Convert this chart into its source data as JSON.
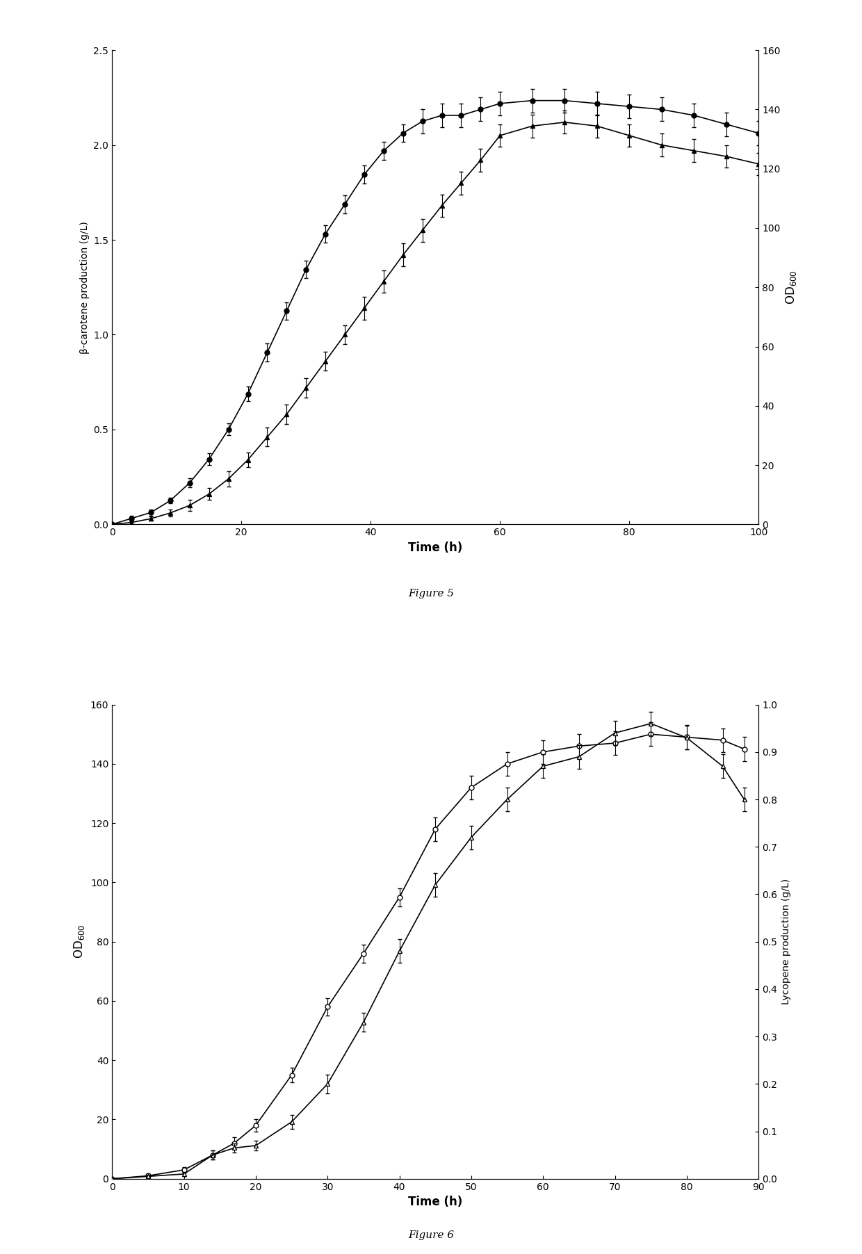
{
  "fig5": {
    "time_od": [
      0,
      3,
      6,
      9,
      12,
      15,
      18,
      21,
      24,
      27,
      30,
      33,
      36,
      39,
      42,
      45,
      48,
      51,
      54,
      57,
      60,
      65,
      70,
      75,
      80,
      85,
      90,
      95,
      100
    ],
    "od600": [
      0,
      2,
      4,
      8,
      14,
      22,
      32,
      44,
      58,
      72,
      86,
      98,
      108,
      118,
      126,
      132,
      136,
      138,
      138,
      140,
      142,
      143,
      143,
      142,
      141,
      140,
      138,
      135,
      132
    ],
    "od_err": [
      0,
      1,
      1,
      1,
      1.5,
      2,
      2,
      2.5,
      3,
      3,
      3,
      3,
      3,
      3,
      3,
      3,
      4,
      4,
      4,
      4,
      4,
      4,
      4,
      4,
      4,
      4,
      4,
      4,
      4
    ],
    "time_bc": [
      0,
      3,
      6,
      9,
      12,
      15,
      18,
      21,
      24,
      27,
      30,
      33,
      36,
      39,
      42,
      45,
      48,
      51,
      54,
      57,
      60,
      65,
      70,
      75,
      80,
      85,
      90,
      95,
      100
    ],
    "beta_carotene": [
      0,
      0.01,
      0.03,
      0.06,
      0.1,
      0.16,
      0.24,
      0.34,
      0.46,
      0.58,
      0.72,
      0.86,
      1.0,
      1.14,
      1.28,
      1.42,
      1.55,
      1.68,
      1.8,
      1.92,
      2.05,
      2.1,
      2.12,
      2.1,
      2.05,
      2.0,
      1.97,
      1.94,
      1.9
    ],
    "beta_err": [
      0,
      0.01,
      0.01,
      0.02,
      0.03,
      0.03,
      0.04,
      0.04,
      0.05,
      0.05,
      0.05,
      0.05,
      0.05,
      0.06,
      0.06,
      0.06,
      0.06,
      0.06,
      0.06,
      0.06,
      0.06,
      0.06,
      0.06,
      0.06,
      0.06,
      0.06,
      0.06,
      0.06,
      0.06
    ],
    "ylabel_left": "β-carotene production (g/L)",
    "ylabel_right": "OD$_{600}$",
    "xlabel": "Time (h)",
    "xlim": [
      0,
      100
    ],
    "ylim_left": [
      0,
      2.5
    ],
    "ylim_right": [
      0,
      160
    ],
    "xticks": [
      0,
      20,
      40,
      60,
      80,
      100
    ],
    "yticks_left": [
      0,
      0.5,
      1.0,
      1.5,
      2.0,
      2.5
    ],
    "yticks_right": [
      0,
      20,
      40,
      60,
      80,
      100,
      120,
      140,
      160
    ],
    "figure_label": "Figure 5"
  },
  "fig6": {
    "time": [
      0,
      5,
      10,
      14,
      17,
      20,
      25,
      30,
      35,
      40,
      45,
      50,
      55,
      60,
      65,
      70,
      75,
      80,
      85,
      88
    ],
    "od600": [
      0,
      1,
      3,
      8,
      12,
      18,
      35,
      58,
      76,
      95,
      118,
      132,
      140,
      144,
      146,
      147,
      150,
      149,
      148,
      145
    ],
    "od_err": [
      0,
      0.5,
      1,
      1.5,
      2,
      2,
      2.5,
      3,
      3,
      3,
      4,
      4,
      4,
      4,
      4,
      4,
      4,
      4,
      4,
      4
    ],
    "lycopene": [
      0,
      0.005,
      0.01,
      0.05,
      0.065,
      0.07,
      0.12,
      0.2,
      0.33,
      0.48,
      0.62,
      0.72,
      0.8,
      0.87,
      0.89,
      0.94,
      0.96,
      0.93,
      0.87,
      0.8
    ],
    "lyc_err": [
      0,
      0.003,
      0.005,
      0.01,
      0.01,
      0.01,
      0.015,
      0.02,
      0.02,
      0.025,
      0.025,
      0.025,
      0.025,
      0.025,
      0.025,
      0.025,
      0.025,
      0.025,
      0.025,
      0.025
    ],
    "ylabel_left": "OD$_{600}$",
    "ylabel_right": "Lycopene production (g/L)",
    "xlabel": "Time (h)",
    "xlim": [
      0,
      90
    ],
    "ylim_left": [
      0,
      160
    ],
    "ylim_right": [
      0,
      1.0
    ],
    "xticks": [
      0,
      10,
      20,
      30,
      40,
      50,
      60,
      70,
      80,
      90
    ],
    "yticks_left": [
      0,
      20,
      40,
      60,
      80,
      100,
      120,
      140,
      160
    ],
    "yticks_right": [
      0,
      0.1,
      0.2,
      0.3,
      0.4,
      0.5,
      0.6,
      0.7,
      0.8,
      0.9,
      1.0
    ],
    "figure_label": "Figure 6"
  },
  "background_color": "#ffffff",
  "line_color": "#000000",
  "markersize": 5,
  "linewidth": 1.2,
  "capsize": 2,
  "elinewidth": 0.8
}
